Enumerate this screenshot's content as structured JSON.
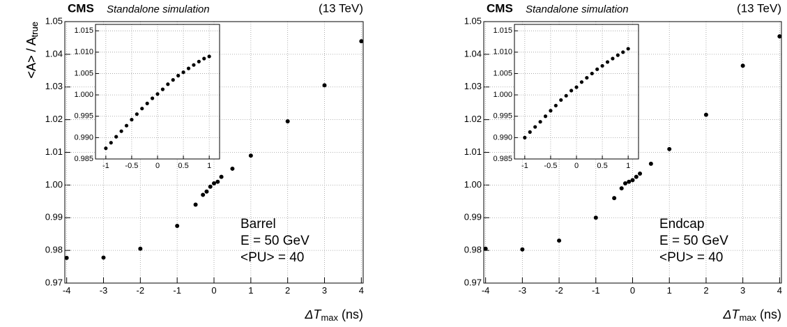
{
  "chart_data": [
    {
      "type": "scatter",
      "experiment": "CMS",
      "label": "Standalone simulation",
      "energy": "(13 TeV)",
      "ylabel": {
        "main": "<A> / A",
        "sub": "true"
      },
      "xlabel": {
        "main": "ΔT",
        "sub": "max",
        "unit": " (ns)"
      },
      "annotations": [
        "Barrel",
        "E = 50 GeV",
        "<PU> = 40"
      ],
      "x": [
        -4,
        -3,
        -2,
        -1,
        -0.5,
        -0.3,
        -0.2,
        -0.1,
        0,
        0.1,
        0.2,
        0.5,
        1,
        2,
        3,
        4
      ],
      "values": [
        0.9777,
        0.9778,
        0.9805,
        0.9875,
        0.994,
        0.997,
        0.998,
        0.9995,
        1.0005,
        1.001,
        1.0025,
        1.005,
        1.009,
        1.0195,
        1.0305,
        1.044
      ],
      "color": "#000000",
      "grid": true,
      "xlim": [
        -4.05,
        4.05
      ],
      "xticks": [
        -4,
        -3,
        -2,
        -1,
        0,
        1,
        2,
        3,
        4
      ],
      "ylim": [
        0.97,
        1.05
      ],
      "yticks": [
        0.97,
        0.98,
        0.99,
        {
          "value": 1,
          "label": "1.00"
        },
        1.01,
        1.02,
        1.03,
        1.04,
        1.05
      ]
    },
    {
      "type": "scatter",
      "x": [
        -1,
        -0.9,
        -0.8,
        -0.7,
        -0.6,
        -0.5,
        -0.4,
        -0.3,
        -0.2,
        -0.1,
        0,
        0.1,
        0.2,
        0.3,
        0.4,
        0.5,
        0.6,
        0.7,
        0.8,
        0.9,
        1
      ],
      "values": [
        0.9875,
        0.9888,
        0.9902,
        0.9915,
        0.9928,
        0.9942,
        0.9955,
        0.9968,
        0.998,
        0.9992,
        1.0002,
        1.0013,
        1.0025,
        1.0035,
        1.0045,
        1.0053,
        1.0062,
        1.007,
        1.0078,
        1.0085,
        1.009
      ],
      "color": "#000000",
      "grid": true,
      "xlim": [
        -1.2,
        1.2
      ],
      "xticks": [
        -1,
        -0.5,
        0,
        0.5,
        1
      ],
      "ylim": [
        0.985,
        1.0165
      ],
      "yticks": [
        0.985,
        {
          "value": 0.99,
          "label": "0.990"
        },
        0.995,
        {
          "value": 1,
          "label": "1.000"
        },
        1.005,
        {
          "value": 1.01,
          "label": "1.010"
        },
        1.015
      ]
    },
    {
      "type": "scatter",
      "experiment": "CMS",
      "label": "Standalone simulation",
      "energy": "(13 TeV)",
      "ylabel": {
        "main": "<A> / A",
        "sub": "true"
      },
      "xlabel": {
        "main": "ΔT",
        "sub": "max",
        "unit": " (ns)"
      },
      "annotations": [
        "Endcap",
        "E = 50 GeV",
        "<PU> = 40"
      ],
      "x": [
        -4,
        -3,
        -2,
        -1,
        -0.5,
        -0.3,
        -0.2,
        -0.1,
        0,
        0.1,
        0.2,
        0.5,
        1,
        2,
        3,
        4
      ],
      "values": [
        0.9805,
        0.9803,
        0.983,
        0.99,
        0.996,
        0.999,
        1.0005,
        1.001,
        1.0015,
        1.0025,
        1.0035,
        1.0065,
        1.011,
        1.0215,
        1.0365,
        1.0455
      ],
      "color": "#000000",
      "grid": true,
      "xlim": [
        -4.05,
        4.05
      ],
      "xticks": [
        -4,
        -3,
        -2,
        -1,
        0,
        1,
        2,
        3,
        4
      ],
      "ylim": [
        0.97,
        1.05
      ],
      "yticks": [
        0.97,
        0.98,
        0.99,
        {
          "value": 1,
          "label": "1.00"
        },
        1.01,
        1.02,
        1.03,
        1.04,
        1.05
      ]
    },
    {
      "type": "scatter",
      "x": [
        -1,
        -0.9,
        -0.8,
        -0.7,
        -0.6,
        -0.5,
        -0.4,
        -0.3,
        -0.2,
        -0.1,
        0,
        0.1,
        0.2,
        0.3,
        0.4,
        0.5,
        0.6,
        0.7,
        0.8,
        0.9,
        1
      ],
      "values": [
        0.99,
        0.9913,
        0.9925,
        0.9937,
        0.995,
        0.9963,
        0.9975,
        0.9988,
        0.9998,
        1.001,
        1.0018,
        1.003,
        1.004,
        1.005,
        1.006,
        1.0068,
        1.0077,
        1.0085,
        1.0093,
        1.01,
        1.0108
      ],
      "color": "#000000",
      "grid": true,
      "xlim": [
        -1.2,
        1.2
      ],
      "xticks": [
        -1,
        -0.5,
        0,
        0.5,
        1
      ],
      "ylim": [
        0.985,
        1.0165
      ],
      "yticks": [
        0.985,
        {
          "value": 0.99,
          "label": "0.990"
        },
        0.995,
        {
          "value": 1,
          "label": "1.000"
        },
        1.005,
        {
          "value": 1.01,
          "label": "1.010"
        },
        1.015
      ]
    }
  ]
}
